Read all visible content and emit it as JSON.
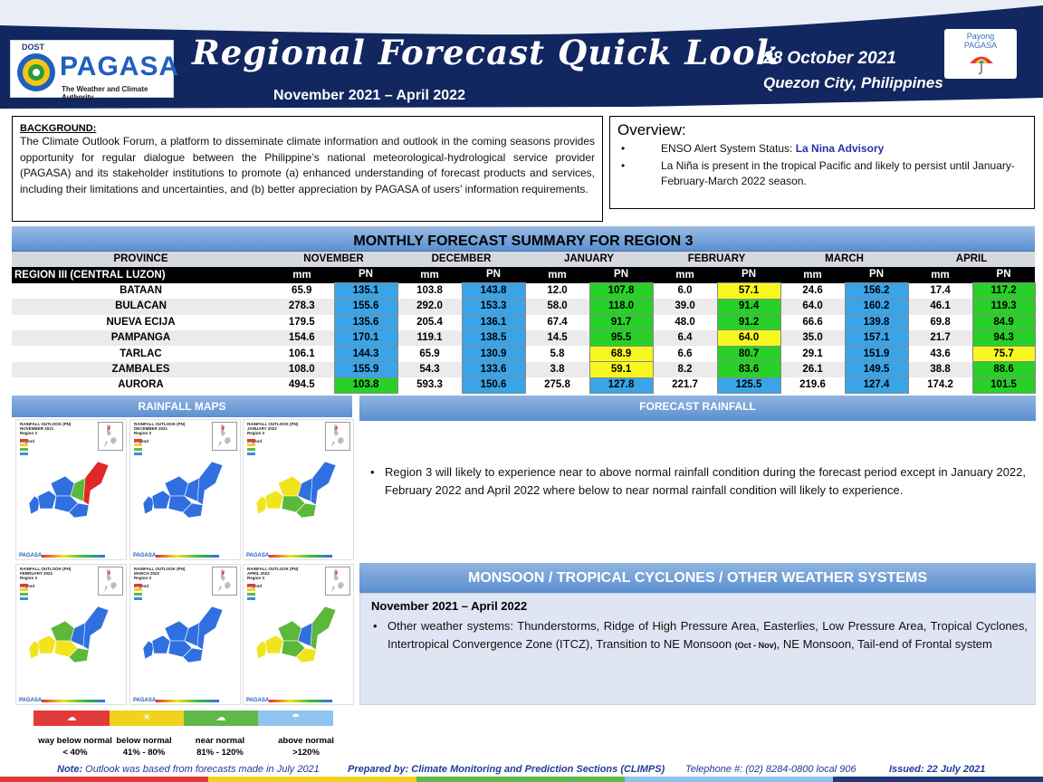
{
  "header": {
    "dost": "DOST",
    "pagasa": "PAGASA",
    "tagline": "The Weather and Climate Authority",
    "title": "Regional Forecast Quick Look",
    "period": "November 2021 – April 2022",
    "date": "28 October 2021",
    "place": "Quezon City, Philippines",
    "payong_line1": "Payong",
    "payong_line2": "PAGASA",
    "colors": {
      "navy": "#12275f",
      "accent": "#2e62b8"
    }
  },
  "background": {
    "title": "BACKGROUND:",
    "text": "The Climate Outlook Forum, a platform to disseminate climate information and outlook in the coming seasons provides opportunity for regular dialogue between the Philippine’s national meteorological-hydrological service provider (PAGASA) and its stakeholder institutions to promote (a) enhanced understanding of forecast products and services, including their limitations and uncertainties, and (b) better appreciation by PAGASA of users’ information requirements."
  },
  "overview": {
    "title": "Overview:",
    "items": [
      {
        "prefix": "ENSO Alert System Status: ",
        "accent": "La Nina Advisory"
      },
      {
        "prefix": "La Niña is present in the tropical Pacific and likely to persist until January- February-March 2022 season.",
        "accent": ""
      }
    ]
  },
  "table": {
    "title": "MONTHLY FORECAST SUMMARY FOR REGION 3",
    "province_header": "PROVINCE",
    "region_label": "REGION III (CENTRAL LUZON)",
    "months": [
      "NOVEMBER",
      "DECEMBER",
      "JANUARY",
      "FEBRUARY",
      "MARCH",
      "APRIL"
    ],
    "unit_mm": "mm",
    "unit_pn": "PN",
    "rows": [
      {
        "province": "BATAAN",
        "cells": [
          [
            "65.9",
            "135.1",
            "blue"
          ],
          [
            "103.8",
            "143.8",
            "blue"
          ],
          [
            "12.0",
            "107.8",
            "green"
          ],
          [
            "6.0",
            "57.1",
            "yellow"
          ],
          [
            "24.6",
            "156.2",
            "blue"
          ],
          [
            "17.4",
            "117.2",
            "green"
          ]
        ]
      },
      {
        "province": "BULACAN",
        "cells": [
          [
            "278.3",
            "155.6",
            "blue"
          ],
          [
            "292.0",
            "153.3",
            "blue"
          ],
          [
            "58.0",
            "118.0",
            "green"
          ],
          [
            "39.0",
            "91.4",
            "green"
          ],
          [
            "64.0",
            "160.2",
            "blue"
          ],
          [
            "46.1",
            "119.3",
            "green"
          ]
        ]
      },
      {
        "province": "NUEVA ECIJA",
        "cells": [
          [
            "179.5",
            "135.6",
            "blue"
          ],
          [
            "205.4",
            "136.1",
            "blue"
          ],
          [
            "67.4",
            "91.7",
            "green"
          ],
          [
            "48.0",
            "91.2",
            "green"
          ],
          [
            "66.6",
            "139.8",
            "blue"
          ],
          [
            "69.8",
            "84.9",
            "green"
          ]
        ]
      },
      {
        "province": "PAMPANGA",
        "cells": [
          [
            "154.6",
            "170.1",
            "blue"
          ],
          [
            "119.1",
            "138.5",
            "blue"
          ],
          [
            "14.5",
            "95.5",
            "green"
          ],
          [
            "6.4",
            "64.0",
            "yellow"
          ],
          [
            "35.0",
            "157.1",
            "blue"
          ],
          [
            "21.7",
            "94.3",
            "green"
          ]
        ]
      },
      {
        "province": "TARLAC",
        "cells": [
          [
            "106.1",
            "144.3",
            "blue"
          ],
          [
            "65.9",
            "130.9",
            "blue"
          ],
          [
            "5.8",
            "68.9",
            "yellow"
          ],
          [
            "6.6",
            "80.7",
            "green"
          ],
          [
            "29.1",
            "151.9",
            "blue"
          ],
          [
            "43.6",
            "75.7",
            "yellow"
          ]
        ]
      },
      {
        "province": "ZAMBALES",
        "cells": [
          [
            "108.0",
            "155.9",
            "blue"
          ],
          [
            "54.3",
            "133.6",
            "blue"
          ],
          [
            "3.8",
            "59.1",
            "yellow"
          ],
          [
            "8.2",
            "83.6",
            "green"
          ],
          [
            "26.1",
            "149.5",
            "blue"
          ],
          [
            "38.8",
            "88.6",
            "green"
          ]
        ]
      },
      {
        "province": "AURORA",
        "cells": [
          [
            "494.5",
            "103.8",
            "green"
          ],
          [
            "593.3",
            "150.6",
            "blue"
          ],
          [
            "275.8",
            "127.8",
            "blue"
          ],
          [
            "221.7",
            "125.5",
            "blue"
          ],
          [
            "219.6",
            "127.4",
            "blue"
          ],
          [
            "174.2",
            "101.5",
            "green"
          ]
        ]
      }
    ],
    "colors": {
      "blue": "#3aa4e8",
      "green": "#27d127",
      "yellow": "#f7f720"
    }
  },
  "rainfall_maps": {
    "title": "RAINFALL MAPS",
    "maps": [
      {
        "title": "RAINFALL OUTLOOK (PN)",
        "month": "NOVEMBER 2021",
        "region": "Region 3",
        "scheme": "nov"
      },
      {
        "title": "RAINFALL OUTLOOK (PN)",
        "month": "DECEMBER 2021",
        "region": "Region 3",
        "scheme": "dec"
      },
      {
        "title": "RAINFALL OUTLOOK (PN)",
        "month": "JANUARY 2022",
        "region": "Region 3",
        "scheme": "jan"
      },
      {
        "title": "RAINFALL OUTLOOK (PN)",
        "month": "FEBRUARY 2022",
        "region": "Region 3",
        "scheme": "feb"
      },
      {
        "title": "RAINFALL OUTLOOK (PN)",
        "month": "MARCH 2022",
        "region": "Region 3",
        "scheme": "mar"
      },
      {
        "title": "RAINFALL OUTLOOK (PN)",
        "month": "APRIL 2022",
        "region": "Region 3",
        "scheme": "apr"
      }
    ],
    "map_legend": "Legend",
    "map_logo": "PAGASA",
    "legend": [
      {
        "label": "way below normal",
        "range": "< 40%",
        "color": "#e23a3a"
      },
      {
        "label": "below normal",
        "range": "41%  -  80%",
        "color": "#f2d21c"
      },
      {
        "label": "near normal",
        "range": "81% - 120%",
        "color": "#5fb84a"
      },
      {
        "label": "above normal",
        "range": ">120%",
        "color": "#3b8de0"
      }
    ]
  },
  "forecast_rainfall": {
    "title": "FORECAST RAINFALL",
    "text": "Region 3 will likely to experience near to above normal rainfall condition during the forecast period except in January 2022, February 2022 and April 2022 where below to near normal rainfall condition will likely to experience."
  },
  "monsoon": {
    "title": "MONSOON / TROPICAL CYCLONES / OTHER WEATHER SYSTEMS",
    "period": "November 2021 – April 2022",
    "text_a": "Other weather systems: Thunderstorms,  Ridge of High Pressure Area,  Easterlies, Low Pressure Area, Tropical Cyclones, Intertropical Convergence Zone (ITCZ), Transition to NE Monsoon ",
    "text_small": "(Oct - Nov)",
    "text_b": ", NE Monsoon, Tail-end of Frontal system"
  },
  "footer": {
    "note_label": "Note:",
    "note": " Outlook was based from forecasts made in July 2021",
    "prepared": "Prepared by: Climate Monitoring and Prediction Sections (CLIMPS)",
    "telephone": "Telephone #: (02) 8284-0800 local 906",
    "issued": "Issued: 22 July 2021"
  }
}
